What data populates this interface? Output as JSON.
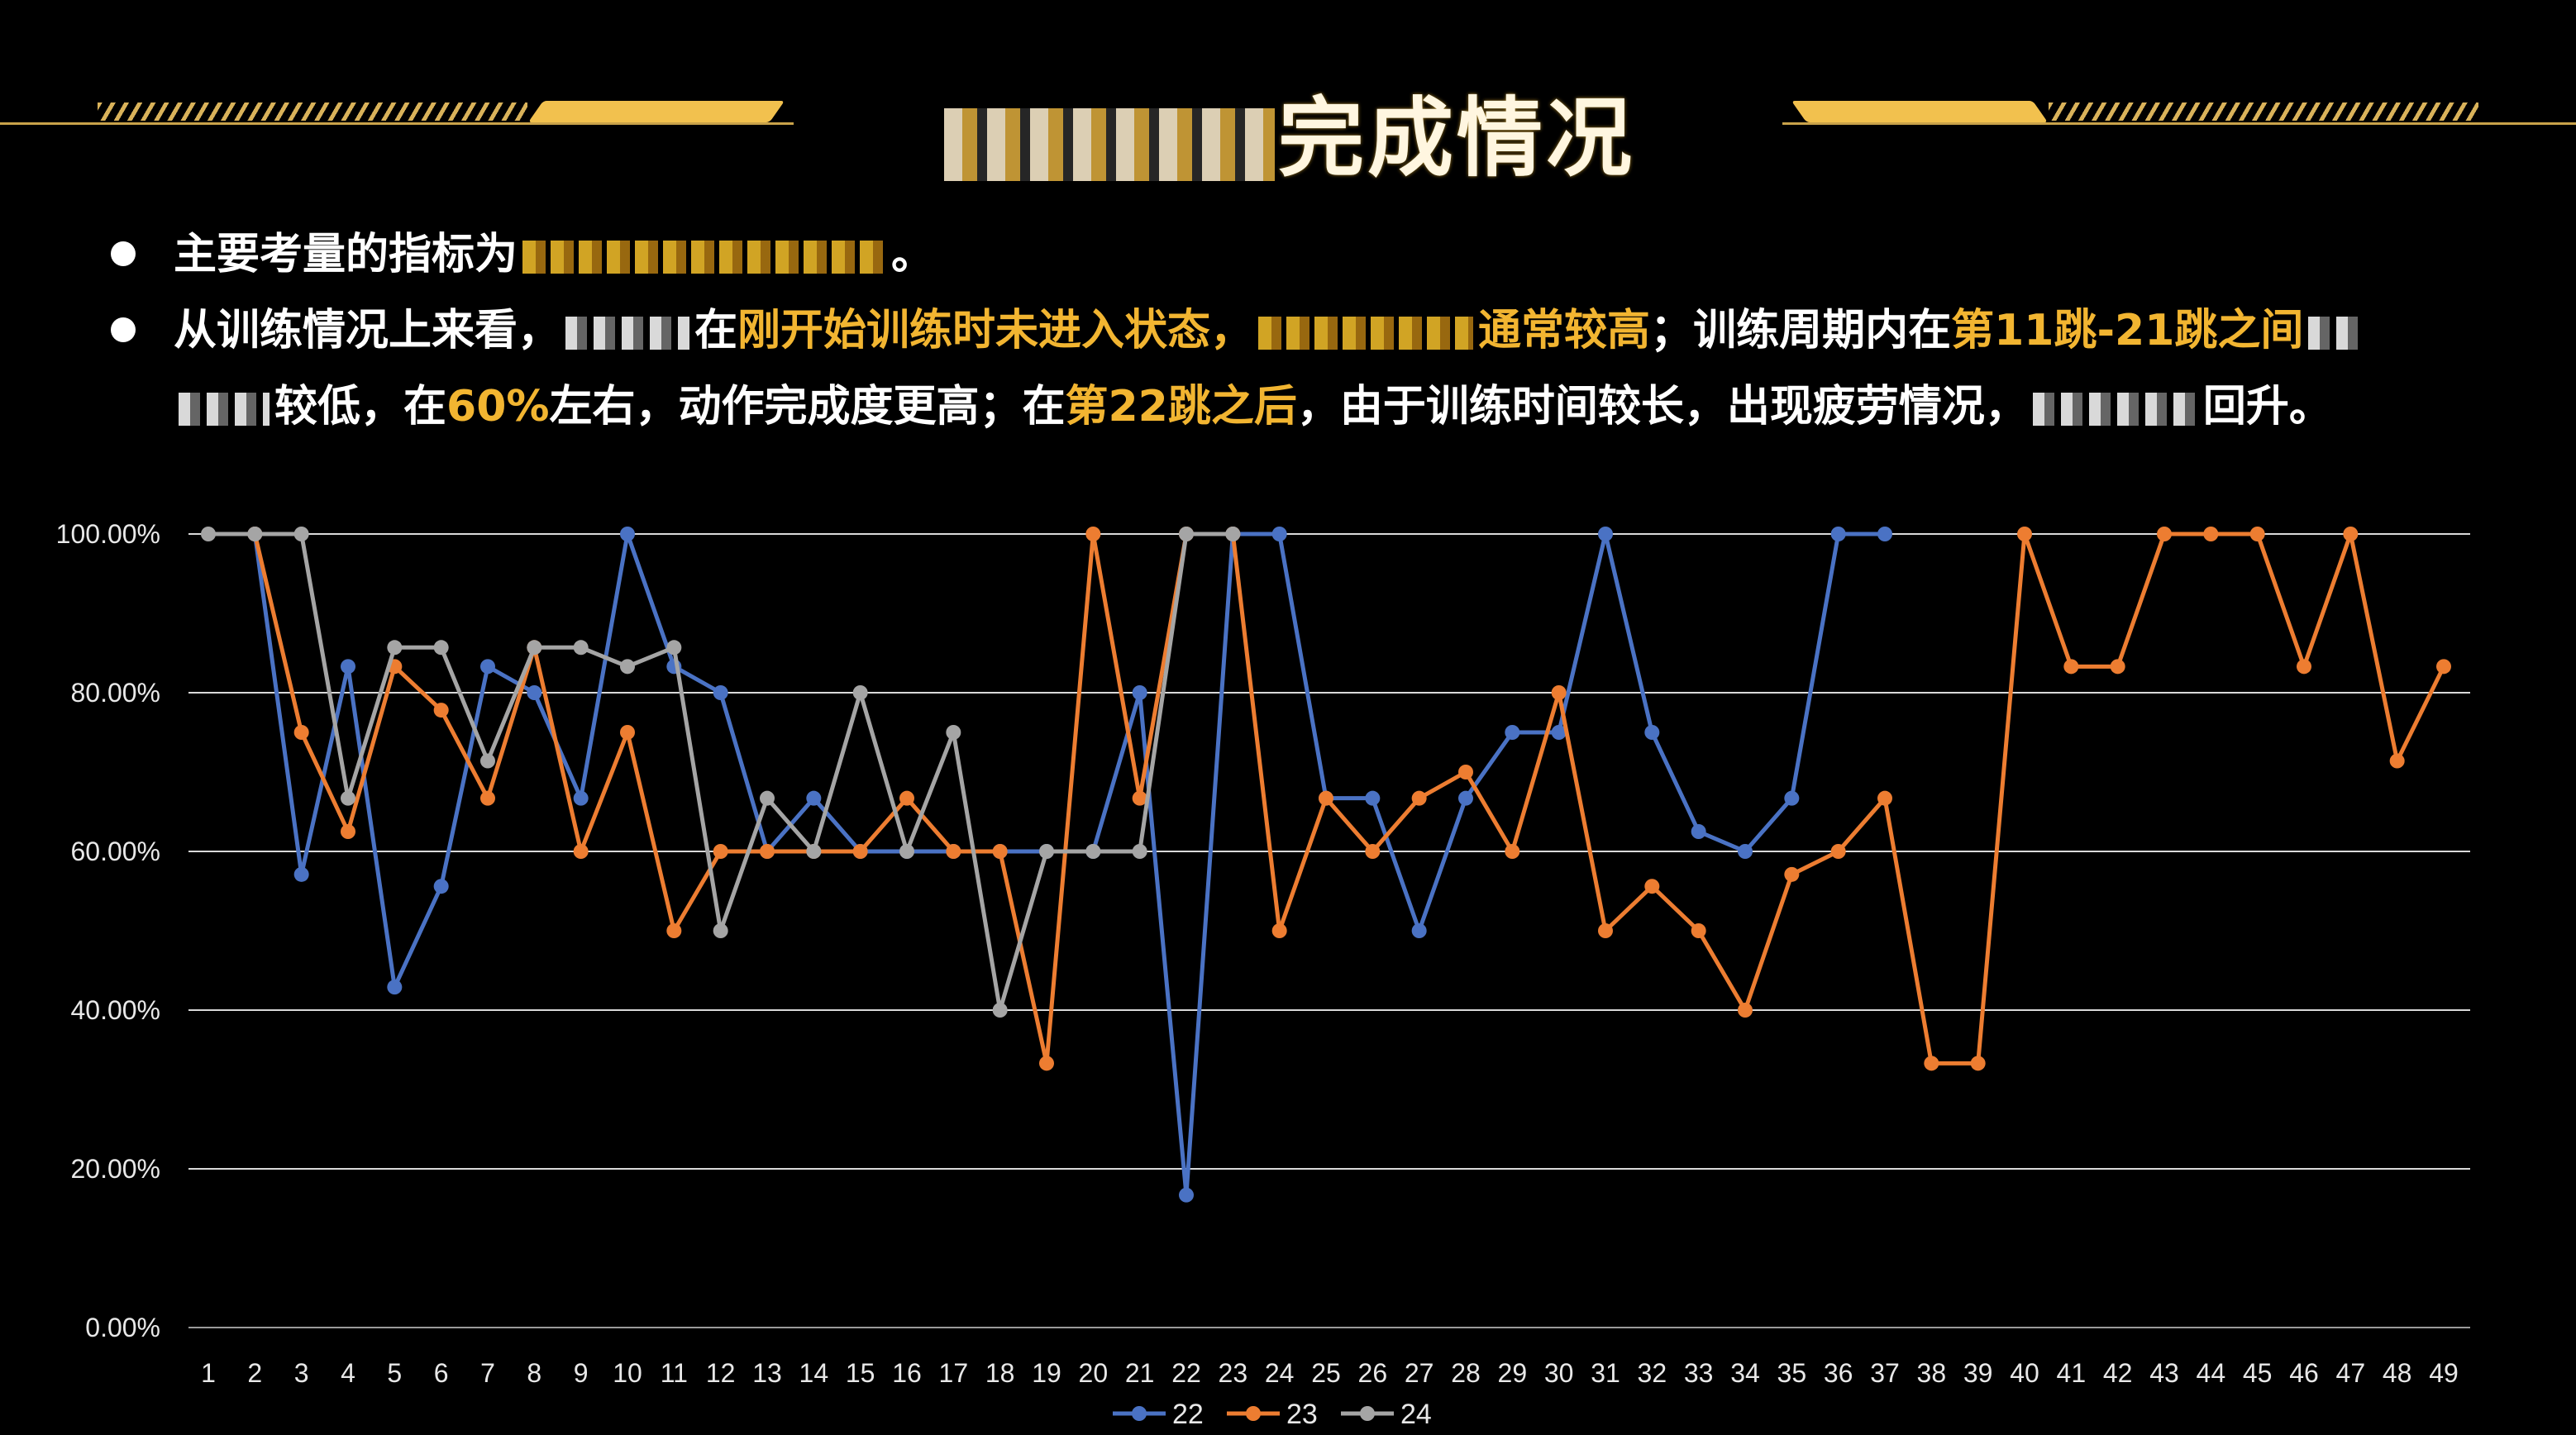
{
  "header": {
    "title_suffix": "完成情况"
  },
  "bullets": [
    {
      "segments": [
        {
          "text": "主要考量的指标为",
          "color": "#ffffff"
        },
        {
          "redacted": true,
          "color": "#f6c12a"
        },
        {
          "text": "。",
          "color": "#ffffff"
        }
      ]
    },
    {
      "segments": [
        {
          "text": "从训练情况上来看，",
          "color": "#ffffff"
        },
        {
          "redacted": true,
          "color": "#ffffff"
        },
        {
          "text": "在",
          "color": "#ffffff"
        },
        {
          "text": "刚开始训练时未进入状态，",
          "color": "#f2b531"
        },
        {
          "redacted": true,
          "color": "#f6c12a"
        },
        {
          "text": "通常较高",
          "color": "#f2b531"
        },
        {
          "text": "；训练周期内在",
          "color": "#ffffff"
        },
        {
          "text": "第11跳-21跳之间",
          "color": "#f2b531"
        },
        {
          "redacted": true,
          "color": "#ffffff"
        }
      ]
    },
    {
      "continuation": true,
      "segments": [
        {
          "redacted": true,
          "color": "#ffffff"
        },
        {
          "text": "较低，在",
          "color": "#ffffff"
        },
        {
          "text": "60%",
          "color": "#f2b531"
        },
        {
          "text": "左右，动作完成度更高；在",
          "color": "#ffffff"
        },
        {
          "text": "第22跳之后",
          "color": "#f2b531"
        },
        {
          "text": "，由于训练时间较长，出现疲劳情况，",
          "color": "#ffffff"
        },
        {
          "redacted": true,
          "color": "#ffffff"
        },
        {
          "text": "回升。",
          "color": "#ffffff"
        }
      ]
    }
  ],
  "chart_data": {
    "type": "line",
    "categories": [
      "1",
      "2",
      "3",
      "4",
      "5",
      "6",
      "7",
      "8",
      "9",
      "10",
      "11",
      "12",
      "13",
      "14",
      "15",
      "16",
      "17",
      "18",
      "19",
      "20",
      "21",
      "22",
      "23",
      "24",
      "25",
      "26",
      "27",
      "28",
      "29",
      "30",
      "31",
      "32",
      "33",
      "34",
      "35",
      "36",
      "37",
      "38",
      "39",
      "40",
      "41",
      "42",
      "43",
      "44",
      "45",
      "46",
      "47",
      "48",
      "49"
    ],
    "ylim": [
      0,
      1
    ],
    "yticks": [
      "0.00%",
      "20.00%",
      "40.00%",
      "60.00%",
      "80.00%",
      "100.00%"
    ],
    "grid": true,
    "legend_position": "bottom",
    "series": [
      {
        "name": "22",
        "color": "#4a72c4",
        "values": [
          null,
          1.0,
          0.571,
          0.833,
          0.429,
          0.556,
          0.833,
          0.8,
          0.667,
          1.0,
          0.833,
          0.8,
          0.6,
          0.667,
          0.6,
          0.6,
          0.6,
          0.6,
          0.6,
          0.6,
          0.8,
          0.167,
          1.0,
          1.0,
          0.667,
          0.667,
          0.5,
          0.667,
          0.75,
          0.75,
          1.0,
          0.75,
          0.625,
          0.6,
          0.667,
          1.0,
          1.0,
          null,
          null,
          null,
          null,
          null,
          null,
          null,
          null,
          null,
          null,
          null,
          null
        ]
      },
      {
        "name": "23",
        "color": "#ed7d31",
        "values": [
          null,
          1.0,
          0.75,
          0.625,
          0.833,
          0.778,
          0.667,
          0.857,
          0.6,
          0.75,
          0.5,
          0.6,
          0.6,
          0.6,
          0.6,
          0.667,
          0.6,
          0.6,
          0.333,
          1.0,
          0.667,
          1.0,
          1.0,
          0.5,
          0.667,
          0.6,
          0.667,
          0.7,
          0.6,
          0.8,
          0.5,
          0.556,
          0.5,
          0.4,
          0.571,
          0.6,
          0.667,
          0.333,
          0.333,
          1.0,
          0.833,
          0.833,
          1.0,
          1.0,
          1.0,
          0.833,
          1.0,
          0.714,
          0.833
        ]
      },
      {
        "name": "24",
        "color": "#a5a5a5",
        "values": [
          1.0,
          1.0,
          1.0,
          0.667,
          0.857,
          0.857,
          0.714,
          0.857,
          0.857,
          0.833,
          0.857,
          0.5,
          0.667,
          0.6,
          0.8,
          0.6,
          0.75,
          0.4,
          0.6,
          0.6,
          0.6,
          1.0,
          1.0,
          null,
          null,
          null,
          null,
          null,
          null,
          null,
          null,
          null,
          null,
          null,
          null,
          null,
          null,
          null,
          null,
          null,
          null,
          null,
          null,
          null,
          null,
          null,
          null,
          null,
          null
        ]
      }
    ]
  }
}
